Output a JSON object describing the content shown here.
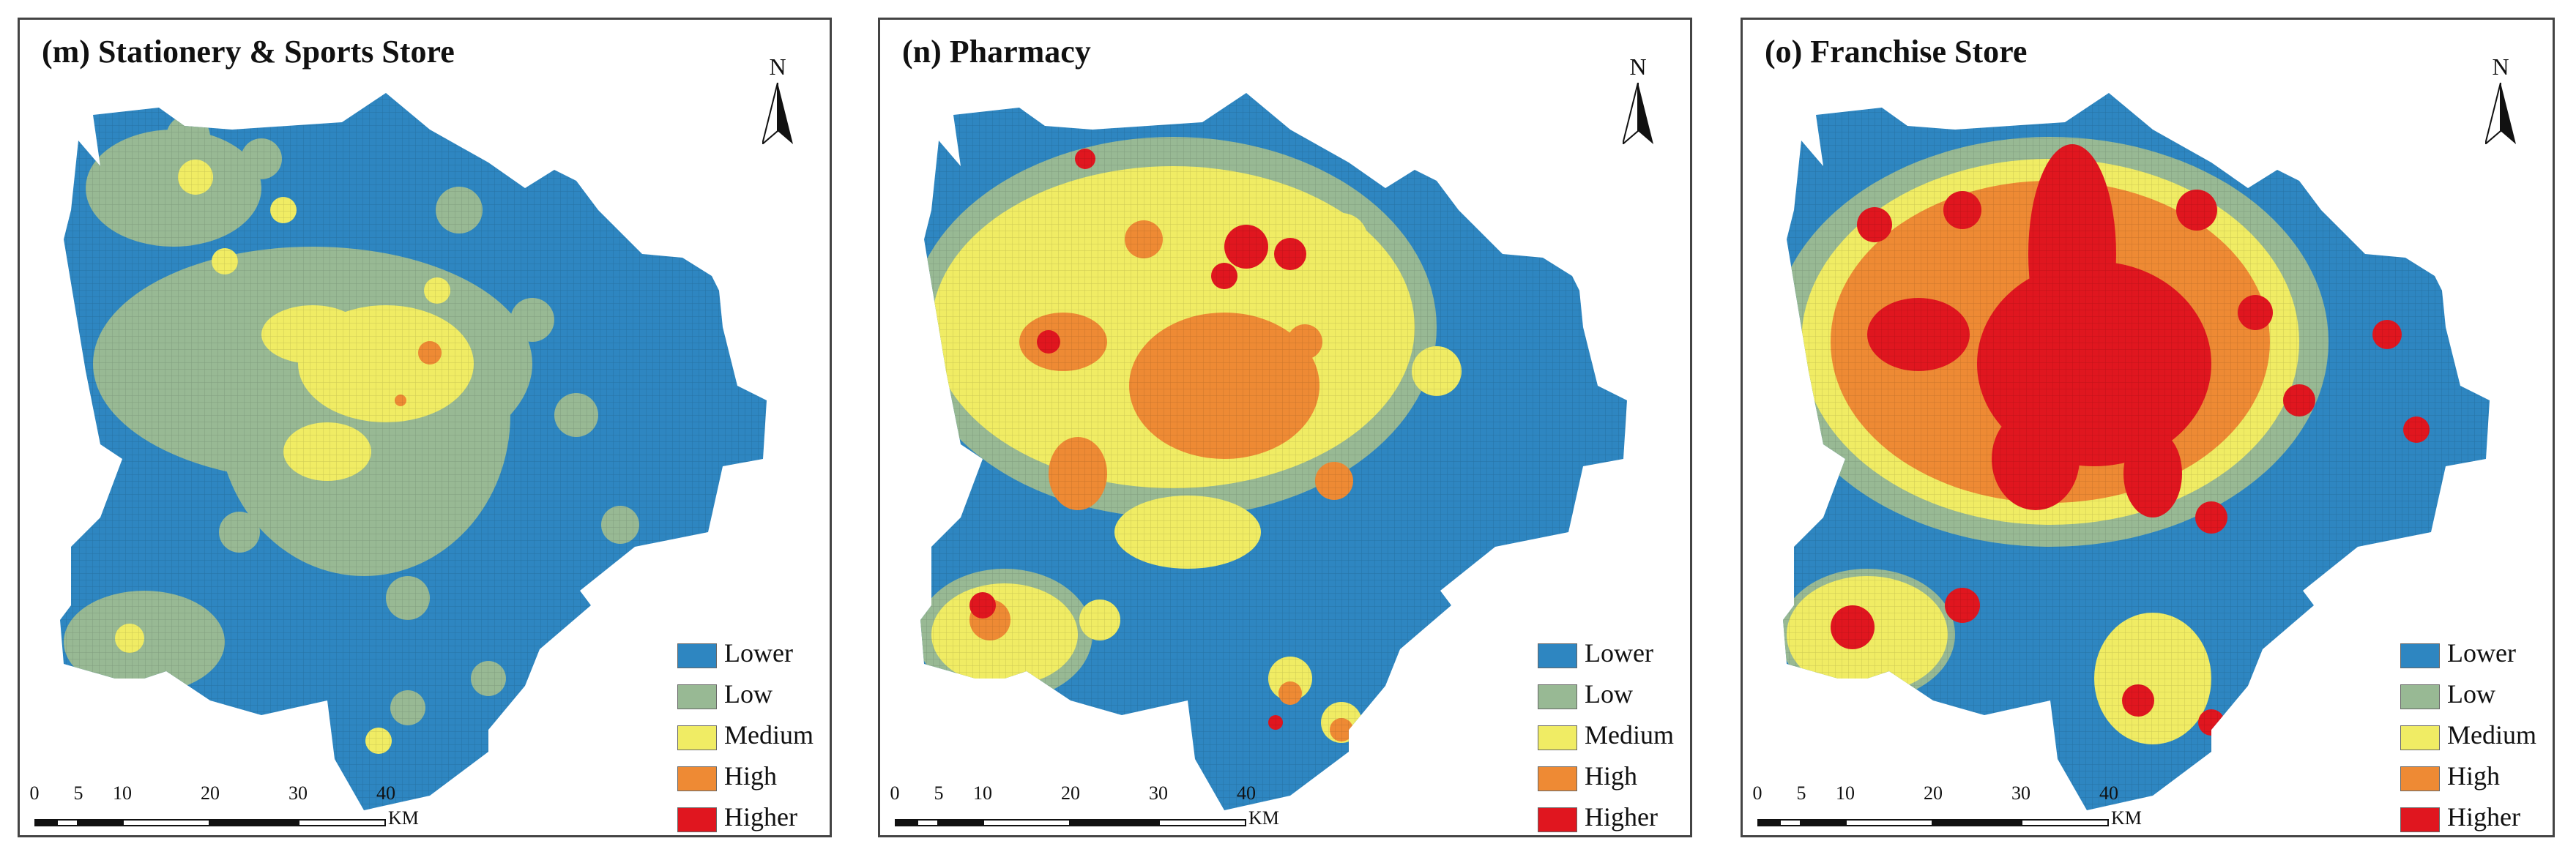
{
  "palette": {
    "lower": "#2e86c1",
    "low": "#98b994",
    "medium": "#f0ec64",
    "high": "#ee8a34",
    "higher": "#e0161f"
  },
  "north_label": "N",
  "legend": [
    "Lower",
    "Low",
    "Medium",
    "High",
    "Higher"
  ],
  "scale": {
    "ticks": [
      "0",
      "5",
      "10",
      "20",
      "30",
      "40"
    ],
    "unit": "KM"
  },
  "panels": [
    {
      "title": "(m) Stationery & Sports Store"
    },
    {
      "title": "(n) Pharmacy"
    },
    {
      "title": "(o) Franchise Store"
    }
  ]
}
